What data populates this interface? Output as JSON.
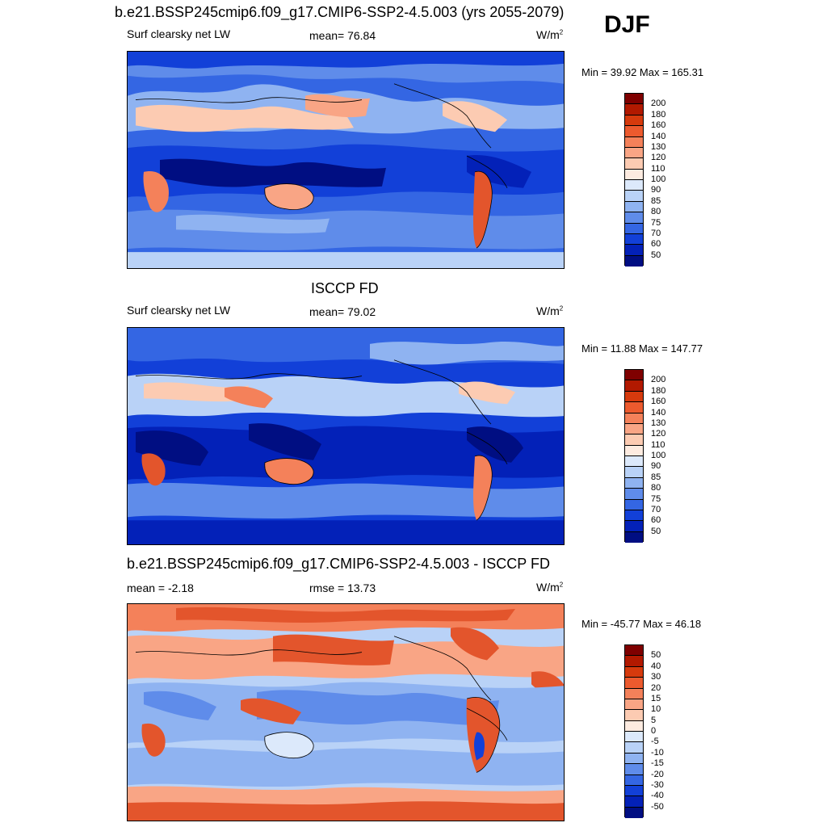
{
  "season": "DJF",
  "panels": [
    {
      "title": "b.e21.BSSP245cmip6.f09_g17.CMIP6-SSP2-4.5.003 (yrs 2055-2079)",
      "left_label": "Surf clearsky net LW",
      "center_label": "mean=  76.84",
      "units": "W/m",
      "units_sup": "2",
      "minmax": "Min =  39.92 Max = 165.31",
      "colorbar_labels": [
        "200",
        "180",
        "160",
        "140",
        "130",
        "120",
        "110",
        "100",
        "90",
        "85",
        "80",
        "75",
        "70",
        "60",
        "50"
      ]
    },
    {
      "title": "ISCCP FD",
      "left_label": "Surf clearsky net LW",
      "center_label": "mean=  79.02",
      "units": "W/m",
      "units_sup": "2",
      "minmax": "Min =  11.88 Max = 147.77",
      "colorbar_labels": [
        "200",
        "180",
        "160",
        "140",
        "130",
        "120",
        "110",
        "100",
        "90",
        "85",
        "80",
        "75",
        "70",
        "60",
        "50"
      ]
    },
    {
      "title": "b.e21.BSSP245cmip6.f09_g17.CMIP6-SSP2-4.5.003 - ISCCP FD",
      "left_label": "mean =  -2.18",
      "center_label": "rmse =  13.73",
      "units": "W/m",
      "units_sup": "2",
      "minmax": "Min = -45.77 Max =  46.18",
      "colorbar_labels": [
        "50",
        "40",
        "30",
        "20",
        "15",
        "10",
        "5",
        "0",
        "-5",
        "-10",
        "-15",
        "-20",
        "-30",
        "-40",
        "-50"
      ]
    }
  ],
  "colors": {
    "colorbar": [
      "#7f0000",
      "#b21900",
      "#d63a0d",
      "#ec5a2e",
      "#f4815a",
      "#f9a585",
      "#fccbb2",
      "#fdebe0",
      "#dce9fb",
      "#b9d2f7",
      "#8fb3f1",
      "#5f8cea",
      "#3466e3",
      "#1240d8",
      "#0321b8",
      "#000e82"
    ],
    "ocean_dark": "#0a2ec4",
    "ocean_mid": "#2d5be0",
    "light_blue": "#a9c6f5",
    "pale": "#dfe9fb",
    "warm": "#f7b39a",
    "red": "#e3552c",
    "dark_red": "#b12214"
  }
}
